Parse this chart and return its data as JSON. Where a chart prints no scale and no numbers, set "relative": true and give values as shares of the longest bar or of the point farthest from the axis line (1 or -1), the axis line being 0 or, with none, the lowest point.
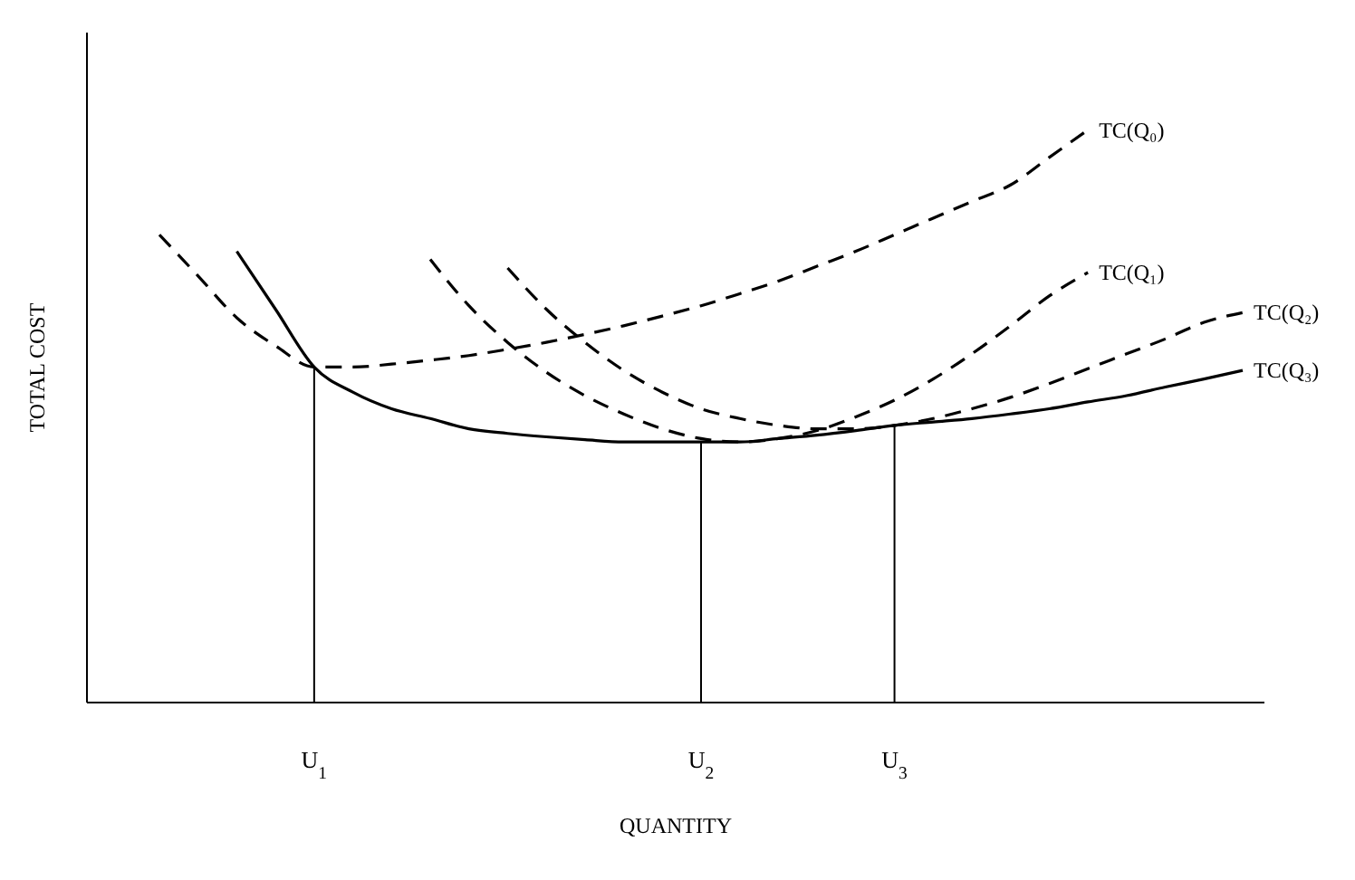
{
  "chart_data": {
    "type": "line",
    "relative": true,
    "xlabel": "QUANTITY",
    "ylabel": "TOTAL COST",
    "marker": "none",
    "categories": [
      null,
      null,
      null,
      null,
      "U$_{1}$",
      null,
      null,
      null,
      null,
      null,
      null,
      null,
      null,
      null,
      "U$_{2}$",
      null,
      null,
      null,
      null,
      "U$_{3}$",
      null,
      null,
      null,
      null,
      null,
      null,
      null,
      null,
      null
    ],
    "series": [
      {
        "name": "TC(Q₀)",
        "color": "#000000",
        "line_style": "dashed",
        "values": [
          0.817,
          0.745,
          0.672,
          0.623,
          0.586,
          0.586,
          0.591,
          0.598,
          0.606,
          0.617,
          0.629,
          0.643,
          0.658,
          0.675,
          0.693,
          0.714,
          0.736,
          0.762,
          0.788,
          0.817,
          0.846,
          0.875,
          0.904,
          0.952,
          1.0,
          null,
          null,
          null,
          null
        ]
      },
      {
        "name": "TC(Q₁)",
        "color": "#000000",
        "line_style": "dashed",
        "values": [
          null,
          null,
          null,
          null,
          null,
          null,
          null,
          0.774,
          0.693,
          0.629,
          0.577,
          0.536,
          0.504,
          0.478,
          0.461,
          0.455,
          0.461,
          0.475,
          0.499,
          0.528,
          0.565,
          0.609,
          0.658,
          0.71,
          0.751,
          null,
          null,
          null,
          null
        ]
      },
      {
        "name": "TC(Q₂)",
        "color": "#000000",
        "line_style": "dashed",
        "values": [
          null,
          null,
          null,
          null,
          null,
          null,
          null,
          null,
          null,
          0.759,
          0.687,
          0.629,
          0.58,
          0.542,
          0.513,
          0.496,
          0.484,
          0.478,
          0.478,
          0.484,
          0.496,
          0.513,
          0.533,
          0.557,
          0.583,
          0.609,
          0.635,
          0.664,
          0.681
        ]
      },
      {
        "name": "TC(Q₃)",
        "color": "#000000",
        "line_style": "solid",
        "values": [
          null,
          null,
          0.788,
          0.687,
          0.586,
          0.542,
          0.513,
          0.496,
          0.478,
          0.47,
          0.464,
          0.459,
          0.455,
          0.455,
          0.455,
          0.455,
          0.461,
          0.467,
          0.475,
          0.484,
          0.49,
          0.496,
          0.504,
          0.513,
          0.525,
          0.536,
          0.551,
          0.565,
          0.58
        ]
      }
    ],
    "ref_lines": [
      {
        "axis": "x",
        "value": "U$_{1}$",
        "color": "#000000"
      },
      {
        "axis": "x",
        "value": "U$_{2}$",
        "color": "#000000"
      },
      {
        "axis": "x",
        "value": "U$_{3}$",
        "color": "#000000"
      }
    ]
  }
}
